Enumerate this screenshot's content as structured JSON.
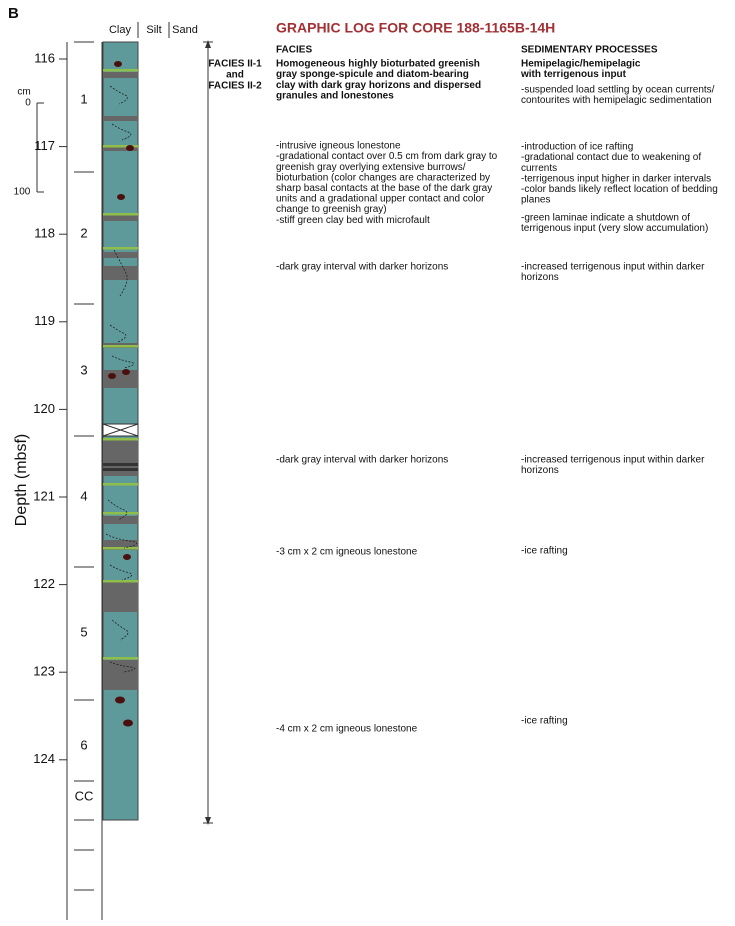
{
  "panel_label": "B",
  "title": "GRAPHIC LOG FOR CORE 188-1165B-14H",
  "columns": [
    "Clay",
    "Silt",
    "Sand"
  ],
  "depth_label": "Depth (mbsf)",
  "depth_ticks": [
    "116",
    "117",
    "118",
    "119",
    "120",
    "121",
    "122",
    "123",
    "124"
  ],
  "scale": {
    "unit": "cm",
    "top": "0",
    "bottom": "100"
  },
  "sections": [
    "1",
    "2",
    "3",
    "4",
    "5",
    "6",
    "CC"
  ],
  "facies_label": [
    "FACIES II-1",
    "and",
    "FACIES II-2"
  ],
  "facies_heading": "FACIES",
  "processes_heading": "SEDIMENTARY PROCESSES",
  "facies_summary": [
    "Homogeneous highly bioturbated greenish",
    "gray sponge-spicule and diatom-bearing",
    "clay with dark gray horizons and dispersed",
    "granules and lonestones"
  ],
  "processes_summary": [
    "Hemipelagic/hemipelagic",
    "with terrigenous input"
  ],
  "facies_notes": [
    [
      "-intrusive igneous lonestone",
      "-gradational contact over 0.5 cm from dark gray to",
      "greenish gray overlying extensive burrows/",
      "bioturbation (color changes are characterized by",
      "sharp basal contacts at the base of the dark gray",
      "units and a gradational upper contact and color",
      "change to greenish gray)",
      "-stiff green clay bed with microfault"
    ],
    [
      "-dark gray interval with darker horizons"
    ],
    [
      "-dark gray interval with darker horizons"
    ],
    [
      "-3 cm x 2 cm igneous lonestone"
    ],
    [
      "-4 cm x 2 cm igneous lonestone"
    ]
  ],
  "process_notes": [
    [
      "-suspended load settling by ocean currents/",
      "contourites with hemipelagic sedimentation"
    ],
    [
      "-introduction of ice rafting",
      "-gradational contact due to weakening of",
      "currents",
      "-terrigenous input higher in darker intervals",
      "-color bands likely reflect location of bedding",
      "planes"
    ],
    [
      "-green laminae indicate a shutdown of",
      "terrigenous input (very slow accumulation)"
    ],
    [
      "-increased terrigenous input within darker",
      "horizons"
    ],
    [
      "-increased terrigenous input within darker",
      "horizons"
    ],
    [
      "-ice rafting"
    ],
    [
      "-ice rafting"
    ]
  ]
}
